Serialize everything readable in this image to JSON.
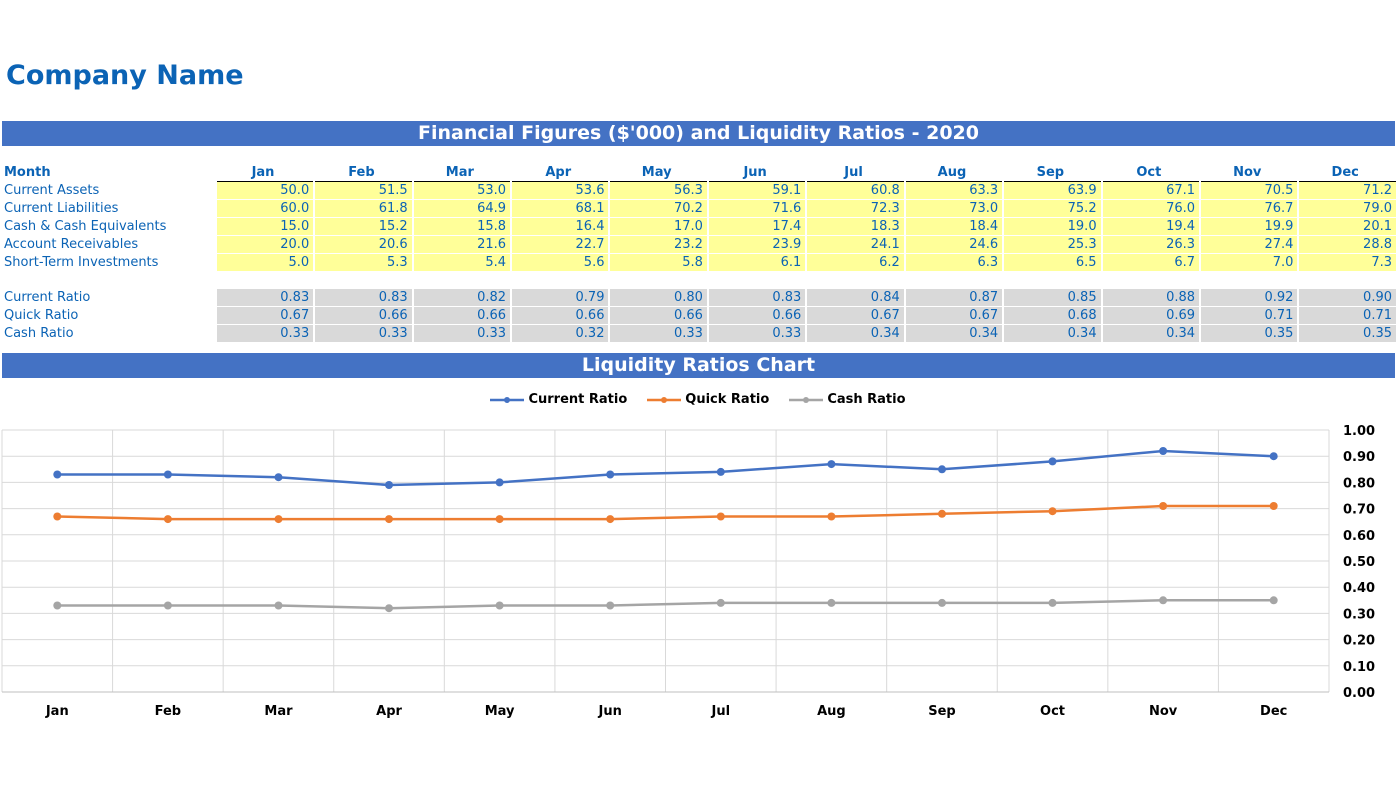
{
  "company_name": "Company Name",
  "table_title": "Financial Figures ($'000) and Liquidity Ratios - 2020",
  "chart_title": "Liquidity Ratios Chart",
  "month_label": "Month",
  "months": [
    "Jan",
    "Feb",
    "Mar",
    "Apr",
    "May",
    "Jun",
    "Jul",
    "Aug",
    "Sep",
    "Oct",
    "Nov",
    "Dec"
  ],
  "figures": [
    {
      "label": "Current Assets",
      "values": [
        "50.0",
        "51.5",
        "53.0",
        "53.6",
        "56.3",
        "59.1",
        "60.8",
        "63.3",
        "63.9",
        "67.1",
        "70.5",
        "71.2"
      ]
    },
    {
      "label": "Current Liabilities",
      "values": [
        "60.0",
        "61.8",
        "64.9",
        "68.1",
        "70.2",
        "71.6",
        "72.3",
        "73.0",
        "75.2",
        "76.0",
        "76.7",
        "79.0"
      ]
    },
    {
      "label": "Cash & Cash Equivalents",
      "values": [
        "15.0",
        "15.2",
        "15.8",
        "16.4",
        "17.0",
        "17.4",
        "18.3",
        "18.4",
        "19.0",
        "19.4",
        "19.9",
        "20.1"
      ]
    },
    {
      "label": "Account Receivables",
      "values": [
        "20.0",
        "20.6",
        "21.6",
        "22.7",
        "23.2",
        "23.9",
        "24.1",
        "24.6",
        "25.3",
        "26.3",
        "27.4",
        "28.8"
      ]
    },
    {
      "label": "Short-Term Investments",
      "values": [
        "5.0",
        "5.3",
        "5.4",
        "5.6",
        "5.8",
        "6.1",
        "6.2",
        "6.3",
        "6.5",
        "6.7",
        "7.0",
        "7.3"
      ]
    }
  ],
  "ratios": [
    {
      "label": "Current Ratio",
      "values": [
        "0.83",
        "0.83",
        "0.82",
        "0.79",
        "0.80",
        "0.83",
        "0.84",
        "0.87",
        "0.85",
        "0.88",
        "0.92",
        "0.90"
      ]
    },
    {
      "label": "Quick Ratio",
      "values": [
        "0.67",
        "0.66",
        "0.66",
        "0.66",
        "0.66",
        "0.66",
        "0.67",
        "0.67",
        "0.68",
        "0.69",
        "0.71",
        "0.71"
      ]
    },
    {
      "label": "Cash Ratio",
      "values": [
        "0.33",
        "0.33",
        "0.33",
        "0.32",
        "0.33",
        "0.33",
        "0.34",
        "0.34",
        "0.34",
        "0.34",
        "0.35",
        "0.35"
      ]
    }
  ],
  "colors": {
    "banner": "#4472c4",
    "text": "#0b63b5",
    "figures_bg": "#ffff99",
    "ratios_bg": "#d9d9d9"
  },
  "chart_data": {
    "type": "line",
    "categories": [
      "Jan",
      "Feb",
      "Mar",
      "Apr",
      "May",
      "Jun",
      "Jul",
      "Aug",
      "Sep",
      "Oct",
      "Nov",
      "Dec"
    ],
    "series": [
      {
        "name": "Current Ratio",
        "color": "#4472c4",
        "values": [
          0.83,
          0.83,
          0.82,
          0.79,
          0.8,
          0.83,
          0.84,
          0.87,
          0.85,
          0.88,
          0.92,
          0.9
        ]
      },
      {
        "name": "Quick Ratio",
        "color": "#ed7d31",
        "values": [
          0.67,
          0.66,
          0.66,
          0.66,
          0.66,
          0.66,
          0.67,
          0.67,
          0.68,
          0.69,
          0.71,
          0.71
        ]
      },
      {
        "name": "Cash Ratio",
        "color": "#a5a5a5",
        "values": [
          0.33,
          0.33,
          0.33,
          0.32,
          0.33,
          0.33,
          0.34,
          0.34,
          0.34,
          0.34,
          0.35,
          0.35
        ]
      }
    ],
    "ylim": [
      0,
      1.0
    ],
    "yticks": [
      "0.00",
      "0.10",
      "0.20",
      "0.30",
      "0.40",
      "0.50",
      "0.60",
      "0.70",
      "0.80",
      "0.90",
      "1.00"
    ],
    "y_axis_side": "right",
    "grid": true,
    "legend_position": "top"
  }
}
